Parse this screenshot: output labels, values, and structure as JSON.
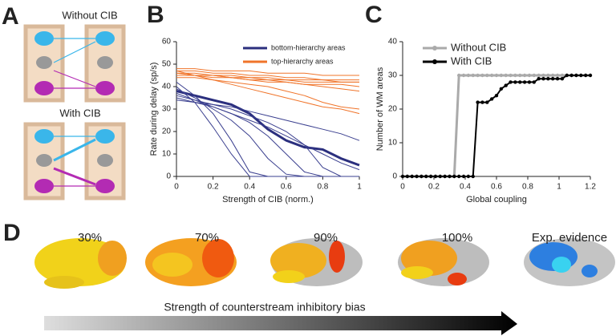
{
  "panel_a": {
    "letter": "A",
    "top_label": "Without CIB",
    "bottom_label": "With CIB"
  },
  "panel_b": {
    "letter": "B"
  },
  "panel_c": {
    "letter": "C"
  },
  "panel_d": {
    "letter": "D",
    "labels": [
      "30%",
      "70%",
      "90%",
      "100%",
      "Exp. evidence"
    ],
    "arrow_label": "Strength of counterstream inhibitory bias"
  },
  "chart_data": [
    {
      "type": "line",
      "xlabel": "Strength of CIB (norm.)",
      "ylabel": "Rate during delay (sp/s)",
      "x": [
        0,
        0.1,
        0.2,
        0.3,
        0.4,
        0.5,
        0.6,
        0.7,
        0.8,
        0.9,
        1
      ],
      "xlim": [
        0,
        1
      ],
      "xticks": [
        0,
        0.2,
        0.4,
        0.6,
        0.8,
        1
      ],
      "ylim": [
        0,
        60
      ],
      "yticks": [
        0,
        10,
        20,
        30,
        40,
        50,
        60
      ],
      "legend": "upper right",
      "marker": false,
      "series": [
        {
          "name": "bottom-hierarchy areas",
          "color": "#2b2f7e",
          "width": 3,
          "values": [
            38,
            36,
            34,
            32,
            28,
            21,
            16,
            13,
            12,
            8,
            5
          ]
        },
        {
          "color": "#3a3f8f",
          "values": [
            42,
            36,
            28,
            16,
            2,
            0,
            0,
            0,
            0,
            0,
            0
          ]
        },
        {
          "color": "#3a3f8f",
          "values": [
            40,
            33,
            22,
            10,
            0,
            0,
            0,
            0,
            0,
            0,
            0
          ]
        },
        {
          "color": "#3a3f8f",
          "values": [
            36,
            34,
            32,
            30,
            27,
            24,
            20,
            14,
            4,
            0,
            0
          ]
        },
        {
          "color": "#3a3f8f",
          "values": [
            35,
            33,
            31,
            28,
            24,
            18,
            10,
            2,
            0,
            0,
            0
          ]
        },
        {
          "color": "#3a3f8f",
          "values": [
            34,
            33,
            32,
            31,
            29,
            27,
            25,
            23,
            21,
            19,
            16
          ]
        },
        {
          "color": "#3a3f8f",
          "values": [
            37,
            34,
            31,
            28,
            25,
            22,
            18,
            14,
            10,
            6,
            3
          ]
        },
        {
          "color": "#3a3f8f",
          "values": [
            39,
            35,
            30,
            25,
            18,
            8,
            1,
            0,
            0,
            0,
            0
          ]
        },
        {
          "name": "top-hierarchy areas",
          "color": "#f0742a",
          "values": [
            48,
            48,
            47,
            47,
            47,
            46,
            46,
            46,
            45,
            45,
            45
          ]
        },
        {
          "color": "#f0742a",
          "values": [
            47,
            47,
            46,
            46,
            45,
            45,
            44,
            44,
            43,
            43,
            43
          ]
        },
        {
          "color": "#f0742a",
          "values": [
            46,
            46,
            45,
            45,
            44,
            43,
            43,
            42,
            42,
            42,
            42
          ]
        },
        {
          "color": "#f0742a",
          "values": [
            45,
            45,
            44,
            44,
            43,
            42,
            42,
            41,
            41,
            41,
            40
          ]
        },
        {
          "color": "#f0742a",
          "values": [
            46,
            45,
            45,
            44,
            43,
            43,
            42,
            41,
            40,
            39,
            38
          ]
        },
        {
          "color": "#f0742a",
          "values": [
            44,
            44,
            43,
            42,
            41,
            40,
            38,
            36,
            33,
            31,
            30
          ]
        },
        {
          "color": "#f0742a",
          "values": [
            47,
            45,
            43,
            41,
            39,
            37,
            35,
            33,
            31,
            30,
            28
          ]
        },
        {
          "color": "#f0742a",
          "values": [
            45,
            45,
            45,
            44,
            44,
            44,
            43,
            43,
            43,
            42,
            42
          ]
        }
      ]
    },
    {
      "type": "line",
      "xlabel": "Global coupling",
      "ylabel": "Number of WM areas",
      "x": [
        0,
        0.03,
        0.06,
        0.09,
        0.12,
        0.15,
        0.18,
        0.21,
        0.24,
        0.27,
        0.3,
        0.33,
        0.36,
        0.39,
        0.42,
        0.45,
        0.48,
        0.51,
        0.54,
        0.57,
        0.6,
        0.63,
        0.66,
        0.69,
        0.72,
        0.75,
        0.78,
        0.81,
        0.84,
        0.87,
        0.9,
        0.93,
        0.96,
        0.99,
        1.02,
        1.05,
        1.08,
        1.11,
        1.14,
        1.17,
        1.2
      ],
      "xlim": [
        0,
        1.2
      ],
      "xticks": [
        0,
        0.2,
        0.4,
        0.6,
        0.8,
        1,
        1.2
      ],
      "ylim": [
        0,
        40
      ],
      "yticks": [
        0,
        10,
        20,
        30,
        40
      ],
      "legend": "upper left",
      "marker": true,
      "series": [
        {
          "name": "Without CIB",
          "color": "#aaaaaa",
          "width": 3,
          "values": [
            0,
            0,
            0,
            0,
            0,
            0,
            0,
            0,
            0,
            0,
            0,
            0,
            30,
            30,
            30,
            30,
            30,
            30,
            30,
            30,
            30,
            30,
            30,
            30,
            30,
            30,
            30,
            30,
            30,
            30,
            30,
            30,
            30,
            30,
            30,
            30,
            30,
            30,
            30,
            30,
            30
          ]
        },
        {
          "name": "With CIB",
          "color": "#000000",
          "width": 2,
          "values": [
            0,
            0,
            0,
            0,
            0,
            0,
            0,
            0,
            0,
            0,
            0,
            0,
            0,
            0,
            0,
            0,
            22,
            22,
            22,
            23,
            24,
            26,
            27,
            28,
            28,
            28,
            28,
            28,
            28,
            29,
            29,
            29,
            29,
            29,
            29,
            30,
            30,
            30,
            30,
            30,
            30
          ]
        }
      ]
    }
  ]
}
